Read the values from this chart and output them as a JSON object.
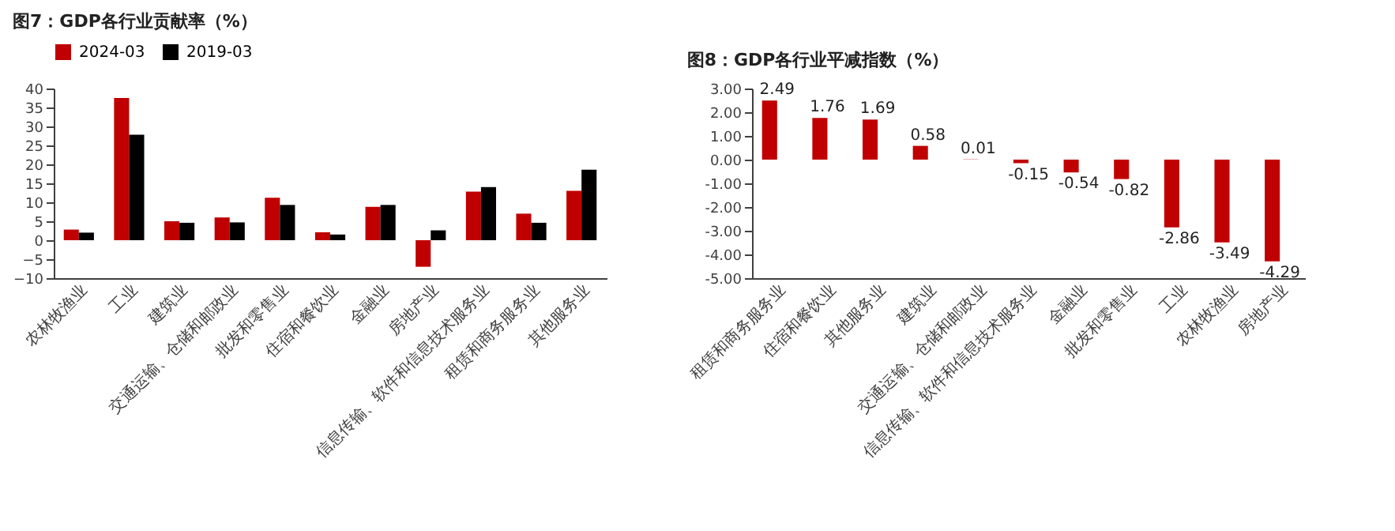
{
  "chart_data": [
    {
      "type": "bar",
      "title": "图7：GDP各行业贡献率（%）",
      "categories": [
        "农林牧渔业",
        "工业",
        "建筑业",
        "交通运输、仓储和邮政业",
        "批发和零售业",
        "住宿和餐饮业",
        "金融业",
        "房地产业",
        "信息传输、软件和信息技术服务业",
        "租赁和商务服务业",
        "其他服务业"
      ],
      "series": [
        {
          "name": "2024-03",
          "color": "#c00000",
          "values": [
            2.8,
            37.5,
            5.0,
            6.0,
            11.2,
            2.1,
            8.8,
            -7.0,
            12.8,
            7.0,
            13.0
          ]
        },
        {
          "name": "2019-03",
          "color": "#000000",
          "values": [
            2.0,
            27.8,
            4.6,
            4.7,
            9.3,
            1.5,
            9.3,
            2.6,
            14.0,
            4.6,
            18.6
          ]
        }
      ],
      "ylim": [
        -10,
        40
      ],
      "yticks": [
        -10,
        -5,
        0,
        5,
        10,
        15,
        20,
        25,
        30,
        35,
        40
      ],
      "legend": "top"
    },
    {
      "type": "bar",
      "title": "图8：GDP各行业平减指数（%）",
      "categories": [
        "租赁和商务服务业",
        "住宿和餐饮业",
        "其他服务业",
        "建筑业",
        "交通运输、仓储和邮政业",
        "信息传输、软件和信息技术服务业",
        "金融业",
        "批发和零售业",
        "工业",
        "农林牧渔业",
        "房地产业"
      ],
      "series": [
        {
          "color": "#c00000",
          "values": [
            2.49,
            1.76,
            1.69,
            0.58,
            0.01,
            -0.15,
            -0.54,
            -0.82,
            -2.86,
            -3.49,
            -4.29
          ]
        }
      ],
      "ylim": [
        -5,
        3
      ],
      "yticks": [
        {
          "value": -5,
          "label": "-5.00"
        },
        {
          "value": -4,
          "label": "-4.00"
        },
        {
          "value": -3,
          "label": "-3.00"
        },
        {
          "value": -2,
          "label": "-2.00"
        },
        {
          "value": -1,
          "label": "-1.00"
        },
        {
          "value": 0,
          "label": "0.00"
        },
        {
          "value": 1,
          "label": "1.00"
        },
        {
          "value": 2,
          "label": "2.00"
        },
        {
          "value": 3,
          "label": "3.00"
        }
      ],
      "data_labels": true
    }
  ]
}
